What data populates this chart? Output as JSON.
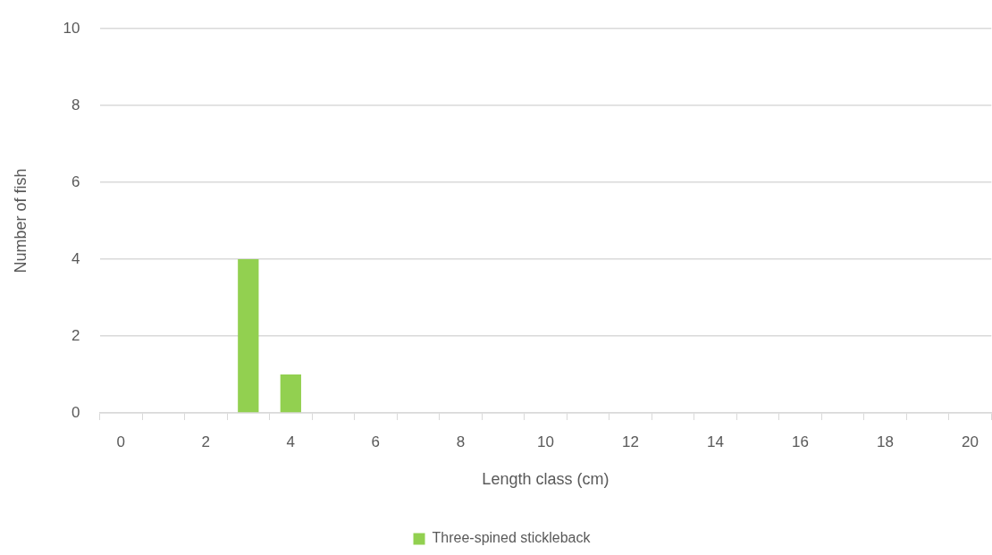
{
  "chart_data": {
    "type": "bar",
    "xlabel": "Length class (cm)",
    "ylabel": "Number of fish",
    "categories": [
      "0",
      null,
      "2",
      null,
      "4",
      null,
      "6",
      null,
      "8",
      null,
      "10",
      null,
      "12",
      null,
      "14",
      null,
      "16",
      null,
      "18",
      null,
      "20"
    ],
    "series": [
      {
        "name": "Three-spined stickleback",
        "color": "#92d050",
        "values": [
          0,
          0,
          0,
          4,
          1,
          0,
          0,
          0,
          0,
          0,
          0,
          0,
          0,
          0,
          0,
          0,
          0,
          0,
          0,
          0,
          0
        ]
      }
    ],
    "ylim": [
      0,
      10
    ],
    "yticks": [
      0,
      2,
      4,
      6,
      8,
      10
    ],
    "grid": "y",
    "legend": "bottom"
  }
}
